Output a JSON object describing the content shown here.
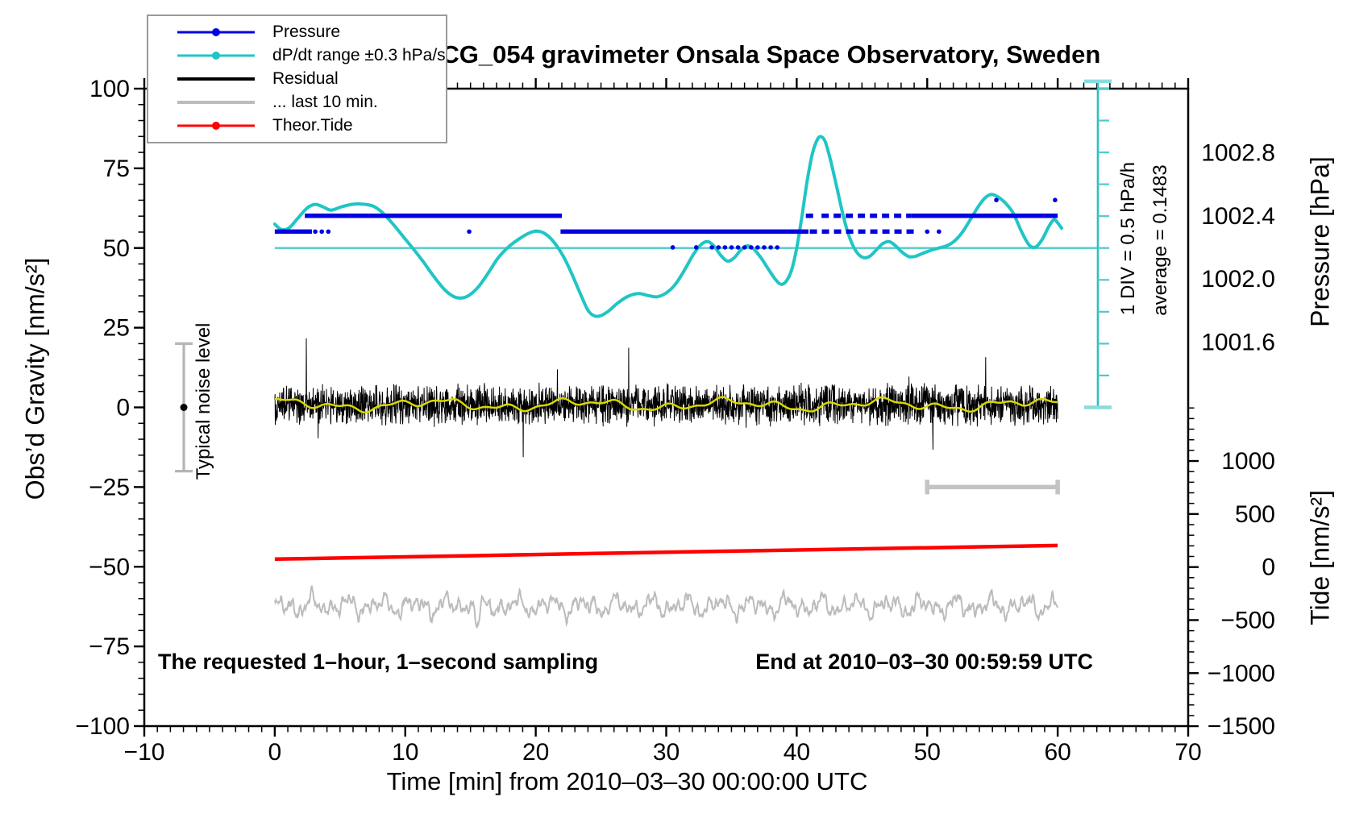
{
  "title": "SCG_054 gravimeter Onsala Space Observatory, Sweden",
  "annotations": {
    "bottom_left": "The requested 1–hour, 1–second sampling",
    "bottom_right": "End at 2010–03–30 00:59:59 UTC",
    "noise_bar_label": "Typical noise level",
    "div_scale_label": "1 DIV = 0.5 hPa/h",
    "div_average_label": "average = 0.1483"
  },
  "legend": {
    "items": [
      {
        "label": "Pressure",
        "color": "#0000e0",
        "marker": "line-dot",
        "thickness": 3
      },
      {
        "label": "dP/dt range ±0.3 hPa/s",
        "color": "#20c5c5",
        "marker": "line-dot",
        "thickness": 3
      },
      {
        "label": "Residual",
        "color": "#000000",
        "marker": "line",
        "thickness": 4
      },
      {
        "label": "... last 10 min.",
        "color": "#bcbcbc",
        "marker": "line",
        "thickness": 4
      },
      {
        "label": "Theor.Tide",
        "color": "#ff0000",
        "marker": "line-dot",
        "thickness": 3
      }
    ]
  },
  "chart_data": {
    "type": "line",
    "title": "SCG_054 gravimeter Onsala Space Observatory, Sweden",
    "axes": {
      "x": {
        "title": "Time [min] from 2010–03–30 00:00:00 UTC",
        "min": -10,
        "max": 70,
        "major_step": 10,
        "minor_step": 1,
        "tick_values": [
          -10,
          0,
          10,
          20,
          30,
          40,
          50,
          60,
          70
        ],
        "tick_labels": [
          "−10",
          "0",
          "10",
          "20",
          "30",
          "40",
          "50",
          "60",
          "70"
        ]
      },
      "gravity": {
        "title": "Obs’d Gravity [nm/s²]",
        "min": -100,
        "max": 100,
        "major_step": 25,
        "minor_step": 5,
        "tick_values": [
          100,
          75,
          50,
          25,
          0,
          -25,
          -50,
          -75,
          -100
        ],
        "tick_labels": [
          "100",
          "75",
          "50",
          "25",
          "0",
          "−25",
          "−50",
          "−75",
          "−100"
        ]
      },
      "pressure": {
        "title": "Pressure [hPa]",
        "tick_values": [
          1002.8,
          1002.4,
          1002.0,
          1001.6
        ],
        "tick_labels": [
          "1002.8",
          "1002.4",
          "1002.0",
          "1001.6"
        ],
        "minor_step": 0.1,
        "ref_value": 1002.4,
        "ref_gravity": 60.1,
        "gravity_per_hpa": 49.5,
        "gravity_span": [
          0,
          100
        ]
      },
      "tide": {
        "title": "Tide [nm/s²]",
        "tick_values": [
          1000,
          500,
          0,
          -500,
          -1000,
          -1500
        ],
        "tick_labels": [
          "1000",
          "500",
          "0",
          "−500",
          "−1000",
          "−1500"
        ],
        "minor_step": 100,
        "zero_gravity": -50.1,
        "tide_per_gravity": 30.05,
        "gravity_span": [
          -100,
          0
        ]
      }
    },
    "series": {
      "pressure": {
        "units": "hPa",
        "color": "#0000e0",
        "segments": [
          {
            "t": [
              0.0,
              2.85
            ],
            "hpa": 1002.3,
            "style": "solid"
          },
          {
            "t": [
              3.1,
              4.3
            ],
            "hpa": 1002.3,
            "style": "dotted"
          },
          {
            "t": [
              2.3,
              22.0
            ],
            "hpa": 1002.4,
            "style": "solid"
          },
          {
            "t": [
              21.9,
              40.9
            ],
            "hpa": 1002.3,
            "style": "solid"
          },
          {
            "t": [
              41.0,
              49.3
            ],
            "hpa": 1002.3,
            "style": "dashed"
          },
          {
            "t": [
              33.5,
              38.8
            ],
            "hpa": 1002.2,
            "style": "dotted"
          },
          {
            "t": [
              40.7,
              41.3
            ],
            "hpa": 1002.4,
            "style": "dashed"
          },
          {
            "t": [
              41.9,
              48.8
            ],
            "hpa": 1002.4,
            "style": "dashed"
          },
          {
            "t": [
              48.8,
              60.0
            ],
            "hpa": 1002.4,
            "style": "solid"
          }
        ],
        "dots": [
          {
            "t": 14.9,
            "hpa": 1002.3
          },
          {
            "t": 50.0,
            "hpa": 1002.3
          },
          {
            "t": 50.9,
            "hpa": 1002.3
          },
          {
            "t": 30.5,
            "hpa": 1002.2
          },
          {
            "t": 32.3,
            "hpa": 1002.2
          },
          {
            "t": 55.3,
            "hpa": 1002.5
          },
          {
            "t": 59.8,
            "hpa": 1002.5
          }
        ]
      },
      "dpdt": {
        "units": "gravity-axis equivalent (10 nm/s² = 1 DIV = 0.5 hPa/h), centered on 50",
        "color": "#20c5c5",
        "reference_gravity": 50,
        "average_hpa_per_h": 0.1483,
        "scale_bar": {
          "t": 63.08,
          "gravity_top": 102.3,
          "gravity_bottom": 0,
          "tick_step_gravity": 10
        },
        "points": [
          [
            0,
            57.5
          ],
          [
            0.5,
            55.8
          ],
          [
            1.1,
            56.3
          ],
          [
            1.8,
            59.5
          ],
          [
            2.5,
            62.6
          ],
          [
            3.1,
            63.7
          ],
          [
            3.7,
            62.9
          ],
          [
            4.3,
            61.9
          ],
          [
            5.1,
            62.9
          ],
          [
            5.9,
            63.7
          ],
          [
            6.7,
            63.8
          ],
          [
            7.5,
            63.2
          ],
          [
            8.2,
            61.3
          ],
          [
            9,
            57.8
          ],
          [
            9.8,
            53.8
          ],
          [
            10.6,
            49.8
          ],
          [
            11.4,
            45.6
          ],
          [
            12.2,
            41
          ],
          [
            13,
            37
          ],
          [
            13.7,
            34.8
          ],
          [
            14.3,
            34.3
          ],
          [
            14.9,
            35.2
          ],
          [
            15.6,
            37.8
          ],
          [
            16.3,
            41.8
          ],
          [
            17.1,
            46.8
          ],
          [
            17.9,
            50.3
          ],
          [
            18.7,
            52.8
          ],
          [
            19.5,
            54.7
          ],
          [
            20.1,
            55.3
          ],
          [
            20.7,
            54.5
          ],
          [
            21.3,
            52.3
          ],
          [
            22,
            48.2
          ],
          [
            22.7,
            42.5
          ],
          [
            23.4,
            35.8
          ],
          [
            24,
            30.5
          ],
          [
            24.5,
            28.7
          ],
          [
            25,
            28.8
          ],
          [
            25.6,
            30.3
          ],
          [
            26.3,
            32.8
          ],
          [
            27.1,
            34.9
          ],
          [
            27.9,
            35.7
          ],
          [
            28.6,
            35.1
          ],
          [
            29.3,
            34.7
          ],
          [
            30,
            35.9
          ],
          [
            30.7,
            38.6
          ],
          [
            31.4,
            43.1
          ],
          [
            32.1,
            48.1
          ],
          [
            32.7,
            51.2
          ],
          [
            33.2,
            52
          ],
          [
            33.7,
            50.4
          ],
          [
            34.2,
            47.6
          ],
          [
            34.7,
            45.9
          ],
          [
            35.2,
            46.9
          ],
          [
            35.7,
            49.3
          ],
          [
            36.2,
            50.7
          ],
          [
            36.7,
            49.7
          ],
          [
            37.3,
            46.7
          ],
          [
            37.9,
            42.9
          ],
          [
            38.4,
            40
          ],
          [
            38.8,
            38.6
          ],
          [
            39.2,
            39.6
          ],
          [
            39.6,
            43
          ],
          [
            40,
            50
          ],
          [
            40.4,
            60
          ],
          [
            40.8,
            71
          ],
          [
            41.2,
            79.6
          ],
          [
            41.6,
            84.2
          ],
          [
            41.9,
            84.9
          ],
          [
            42.2,
            83.2
          ],
          [
            42.6,
            77.4
          ],
          [
            43.1,
            68.5
          ],
          [
            43.6,
            59.5
          ],
          [
            44.1,
            52.8
          ],
          [
            44.6,
            48.7
          ],
          [
            45.1,
            47
          ],
          [
            45.6,
            47.4
          ],
          [
            46.1,
            49.4
          ],
          [
            46.6,
            51.4
          ],
          [
            47.1,
            52
          ],
          [
            47.6,
            50.6
          ],
          [
            48.1,
            48.6
          ],
          [
            48.6,
            47.3
          ],
          [
            49.1,
            47.4
          ],
          [
            49.7,
            48.4
          ],
          [
            50.3,
            49.3
          ],
          [
            50.9,
            50
          ],
          [
            51.5,
            50.7
          ],
          [
            52.1,
            52.2
          ],
          [
            52.7,
            55
          ],
          [
            53.3,
            58.9
          ],
          [
            53.9,
            62.9
          ],
          [
            54.4,
            65.6
          ],
          [
            54.9,
            66.8
          ],
          [
            55.4,
            66.1
          ],
          [
            56,
            64.1
          ],
          [
            56.6,
            60.9
          ],
          [
            57.2,
            55.4
          ],
          [
            57.8,
            51
          ],
          [
            58.3,
            50.3
          ],
          [
            58.8,
            52.6
          ],
          [
            59.3,
            56.6
          ],
          [
            59.7,
            58.9
          ],
          [
            60,
            57.9
          ],
          [
            60.3,
            56.2
          ]
        ]
      },
      "residual": {
        "color": "#000000",
        "center_gravity": 0.8,
        "time_span": [
          0,
          60
        ],
        "description": "1-second residual noise band, mostly ±8 nm/s² with spikes to ±18 nm/s²"
      },
      "residual_smooth": {
        "color": "#d8d800",
        "center_gravity": 0.8,
        "description": "slow smoothed residual overlay, amplitude ≈ ±2 nm/s²"
      },
      "last10": {
        "color": "#bcbcbc",
        "center_gravity": -62.3,
        "amplitude_gravity": 5,
        "dip": {
          "t": 15.5,
          "gravity_min": -73
        },
        "time_span": [
          0,
          60
        ],
        "window_bar": {
          "t": [
            50,
            60
          ],
          "gravity": -25
        },
        "description": "… last 10 min. trace (residual detail), drawn near gravity −62"
      },
      "tide": {
        "color": "#ff0000",
        "units": "nm/s² (tide axis)",
        "points_tide": [
          [
            0,
            75
          ],
          [
            10,
            96
          ],
          [
            20,
            118
          ],
          [
            30,
            140
          ],
          [
            40,
            161
          ],
          [
            50,
            182
          ],
          [
            60,
            203
          ]
        ]
      },
      "noise_bar": {
        "t": -6.97,
        "gravity_center": 0,
        "gravity_halfspan": 20,
        "label": "Typical noise level"
      }
    }
  }
}
